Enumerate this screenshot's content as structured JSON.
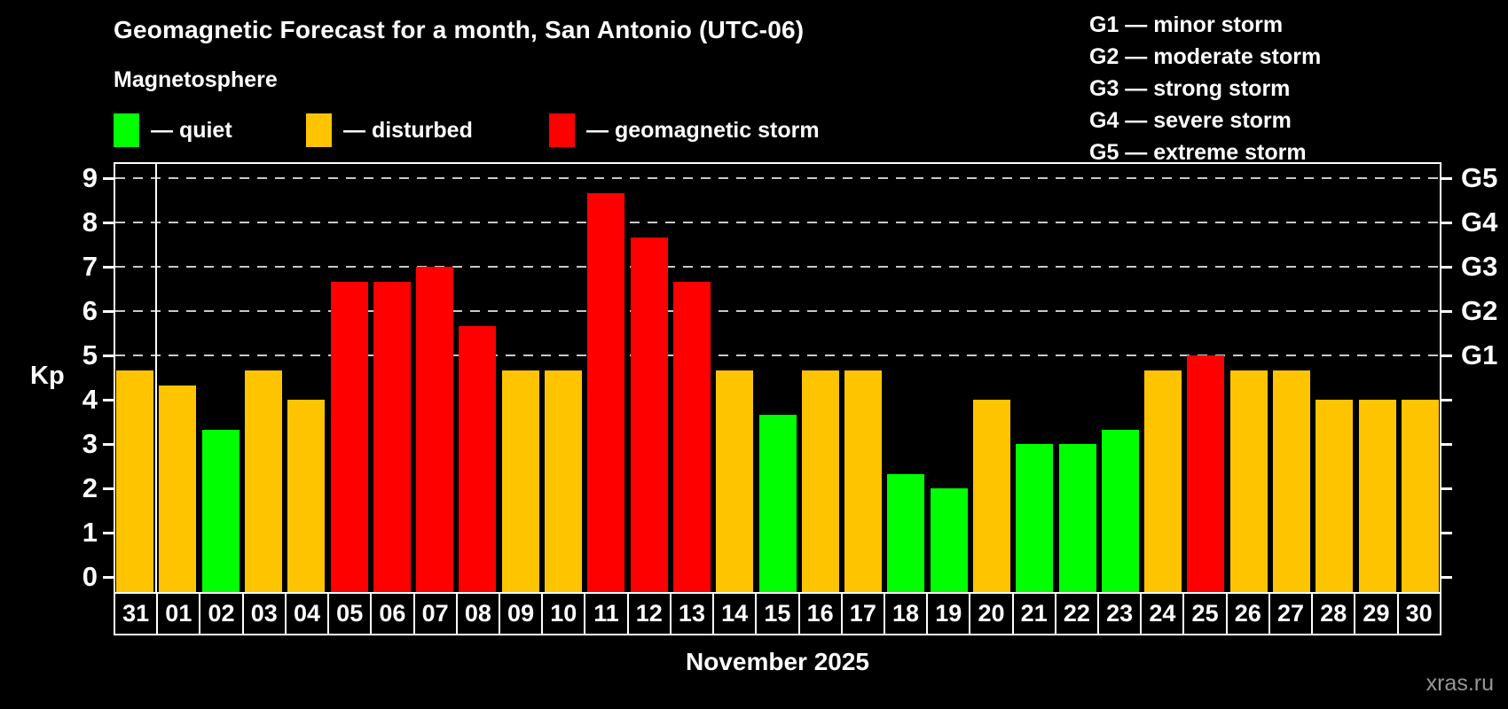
{
  "header": {
    "title": "Geomagnetic Forecast for a month, San Antonio (UTC-06)",
    "subtitle": "Magnetosphere"
  },
  "legend": {
    "items": [
      {
        "key": "quiet",
        "label": "— quiet",
        "color": "#00ff00"
      },
      {
        "key": "disturbed",
        "label": "— disturbed",
        "color": "#ffc400"
      },
      {
        "key": "storm",
        "label": "— geomagnetic storm",
        "color": "#ff0000"
      }
    ]
  },
  "storm_scale_legend": {
    "lines": [
      "G1 — minor storm",
      "G2 — moderate storm",
      "G3 — strong storm",
      "G4 — severe storm",
      "G5 — extreme storm"
    ]
  },
  "watermark": "xras.ru",
  "chart_data": {
    "type": "bar",
    "title": "Geomagnetic Forecast for a month, San Antonio (UTC-06)",
    "subtitle": "Magnetosphere",
    "xlabel": "November 2025",
    "ylabel": "Kp",
    "categories": [
      "31",
      "01",
      "02",
      "03",
      "04",
      "05",
      "06",
      "07",
      "08",
      "09",
      "10",
      "11",
      "12",
      "13",
      "14",
      "15",
      "16",
      "17",
      "18",
      "19",
      "20",
      "21",
      "22",
      "23",
      "24",
      "25",
      "26",
      "27",
      "28",
      "29",
      "30"
    ],
    "values": [
      4.67,
      4.33,
      3.33,
      4.67,
      4.0,
      6.67,
      6.67,
      7.0,
      5.67,
      4.67,
      4.67,
      8.67,
      7.67,
      6.67,
      4.67,
      3.67,
      4.67,
      4.67,
      2.33,
      2.0,
      4.0,
      3.0,
      3.0,
      3.33,
      4.67,
      5.0,
      4.67,
      4.67,
      4.0,
      4.0,
      4.0
    ],
    "statuses": [
      "disturbed",
      "disturbed",
      "quiet",
      "disturbed",
      "disturbed",
      "storm",
      "storm",
      "storm",
      "storm",
      "disturbed",
      "disturbed",
      "storm",
      "storm",
      "storm",
      "disturbed",
      "quiet",
      "disturbed",
      "disturbed",
      "quiet",
      "quiet",
      "disturbed",
      "quiet",
      "quiet",
      "quiet",
      "disturbed",
      "storm",
      "disturbed",
      "disturbed",
      "disturbed",
      "disturbed",
      "disturbed"
    ],
    "status_colors": {
      "quiet": "#00ff00",
      "disturbed": "#ffc400",
      "storm": "#ff0000"
    },
    "ylim": [
      -0.35,
      9.35
    ],
    "y_ticks": [
      0,
      1,
      2,
      3,
      4,
      5,
      6,
      7,
      8,
      9
    ],
    "gridlines_at": [
      5,
      6,
      7,
      8,
      9
    ],
    "right_axis_labels": [
      {
        "kp": 5,
        "label": "G1"
      },
      {
        "kp": 6,
        "label": "G2"
      },
      {
        "kp": 7,
        "label": "G3"
      },
      {
        "kp": 8,
        "label": "G4"
      },
      {
        "kp": 9,
        "label": "G5"
      }
    ],
    "month_separator_after_index": 0,
    "grid": "dashed horizontal lines at storm levels only",
    "legend_position": "top-left"
  }
}
